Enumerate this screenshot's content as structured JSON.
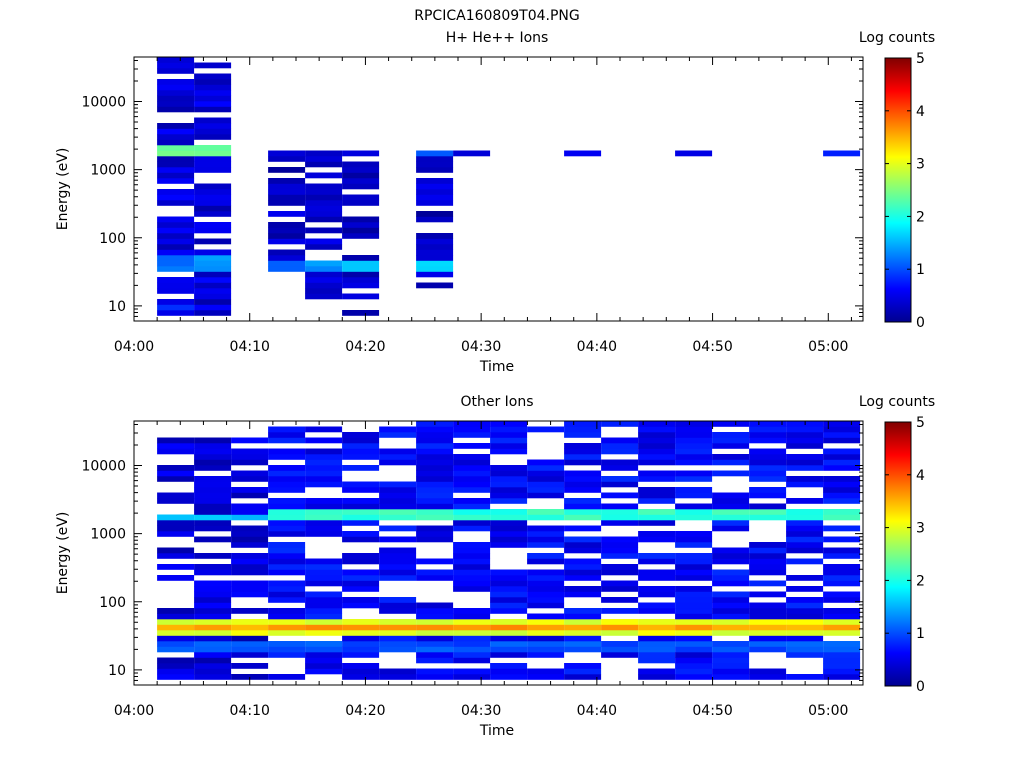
{
  "figure_title": "RPCICA160809T04.PNG",
  "colors": {
    "colormap": [
      "#00008f",
      "#0000ff",
      "#0080ff",
      "#00ffff",
      "#80ff80",
      "#ffff00",
      "#ff8000",
      "#ff0000",
      "#800000"
    ]
  },
  "chart_data": [
    {
      "type": "heatmap",
      "title": "H+ He++ Ions",
      "xlabel": "Time",
      "ylabel": "Energy (eV)",
      "x_ticks": [
        "04:00",
        "04:10",
        "04:20",
        "04:30",
        "04:40",
        "04:50",
        "05:00"
      ],
      "y_ticks": [
        "10",
        "100",
        "1000",
        "10000"
      ],
      "y_scale": "log",
      "ylim": [
        6,
        45000
      ],
      "xlim": [
        "04:00",
        "05:03"
      ],
      "colorbar": {
        "label": "Log counts",
        "ticks": [
          "0",
          "1",
          "2",
          "3",
          "4",
          "5"
        ],
        "range": [
          0,
          5
        ]
      },
      "bands": [
        {
          "time": "04:02",
          "energy": [
            7,
            45000
          ],
          "log_counts": 0.4
        },
        {
          "time": "04:02",
          "energy": [
            1600,
            2200
          ],
          "log_counts": 2.3
        },
        {
          "time": "04:02",
          "energy": [
            30,
            60
          ],
          "log_counts": 1.2
        },
        {
          "time": "04:05",
          "energy": [
            11,
            45000
          ],
          "log_counts": 0.4
        },
        {
          "time": "04:05",
          "energy": [
            7,
            11
          ],
          "log_counts": 0.6
        },
        {
          "time": "04:05",
          "energy": [
            1600,
            2200
          ],
          "log_counts": 2.4
        },
        {
          "time": "04:05",
          "energy": [
            30,
            60
          ],
          "log_counts": 1.1
        },
        {
          "time": "04:08",
          "energy": [
            7,
            45000
          ],
          "log_counts": 0.4
        },
        {
          "time": "04:08",
          "energy": [
            1600,
            2200
          ],
          "log_counts": 2.3
        },
        {
          "time": "04:08",
          "energy": [
            30,
            60
          ],
          "log_counts": 1.3
        },
        {
          "time": "04:12",
          "energy": [
            28,
            1800
          ],
          "log_counts": 0.3
        },
        {
          "time": "04:12",
          "energy": [
            35,
            50
          ],
          "log_counts": 1.2
        },
        {
          "time": "04:15",
          "energy": [
            12,
            1800
          ],
          "log_counts": 0.3
        },
        {
          "time": "04:15",
          "energy": [
            35,
            50
          ],
          "log_counts": 1.3
        },
        {
          "time": "04:18",
          "energy": [
            7,
            1800
          ],
          "log_counts": 0.3
        },
        {
          "time": "04:18",
          "energy": [
            35,
            50
          ],
          "log_counts": 1.4
        },
        {
          "time": "04:21",
          "energy": [
            7,
            1800
          ],
          "log_counts": 0.3
        },
        {
          "time": "04:21",
          "energy": [
            35,
            50
          ],
          "log_counts": 1.5
        },
        {
          "time": "04:25",
          "energy": [
            17,
            1900
          ],
          "log_counts": 0.3
        },
        {
          "time": "04:25",
          "energy": [
            35,
            50
          ],
          "log_counts": 1.7
        },
        {
          "time": "04:25",
          "energy": [
            1600,
            2000
          ],
          "log_counts": 1.2
        },
        {
          "time": "04:28",
          "energy": [
            1500,
            2200
          ],
          "log_counts": 0.6
        },
        {
          "time": "04:38",
          "energy": [
            1500,
            2000
          ],
          "log_counts": 0.6
        },
        {
          "time": "04:48",
          "energy": [
            1600,
            1900
          ],
          "log_counts": 0.7
        },
        {
          "time": "05:00",
          "energy": [
            1600,
            1900
          ],
          "log_counts": 0.8
        }
      ]
    },
    {
      "type": "heatmap",
      "title": "Other Ions",
      "xlabel": "Time",
      "ylabel": "Energy (eV)",
      "x_ticks": [
        "04:00",
        "04:10",
        "04:20",
        "04:30",
        "04:40",
        "04:50",
        "05:00"
      ],
      "y_ticks": [
        "10",
        "100",
        "1000",
        "10000"
      ],
      "y_scale": "log",
      "ylim": [
        6,
        45000
      ],
      "xlim": [
        "04:00",
        "05:03"
      ],
      "colorbar": {
        "label": "Log counts",
        "ticks": [
          "0",
          "1",
          "2",
          "3",
          "4",
          "5"
        ],
        "range": [
          0,
          5
        ]
      },
      "bands": [
        {
          "time": "04:02-04:10",
          "energy": [
            7,
            25000
          ],
          "log_counts": 0.4
        },
        {
          "time": "04:02-04:10",
          "energy": [
            1600,
            2000
          ],
          "log_counts": 1.5
        },
        {
          "time": "04:10-05:02",
          "energy": [
            7,
            45000
          ],
          "log_counts": 0.6
        },
        {
          "time": "04:10-05:02",
          "energy": [
            1500,
            2100
          ],
          "log_counts": 2.1
        },
        {
          "time": "04:02-05:02",
          "energy": [
            30,
            60
          ],
          "log_counts": 3.0
        },
        {
          "time": "04:02-05:02",
          "energy": [
            38,
            45
          ],
          "log_counts": 3.6
        },
        {
          "time": "04:02-05:02",
          "energy": [
            18,
            28
          ],
          "log_counts": 1.0
        }
      ]
    }
  ]
}
